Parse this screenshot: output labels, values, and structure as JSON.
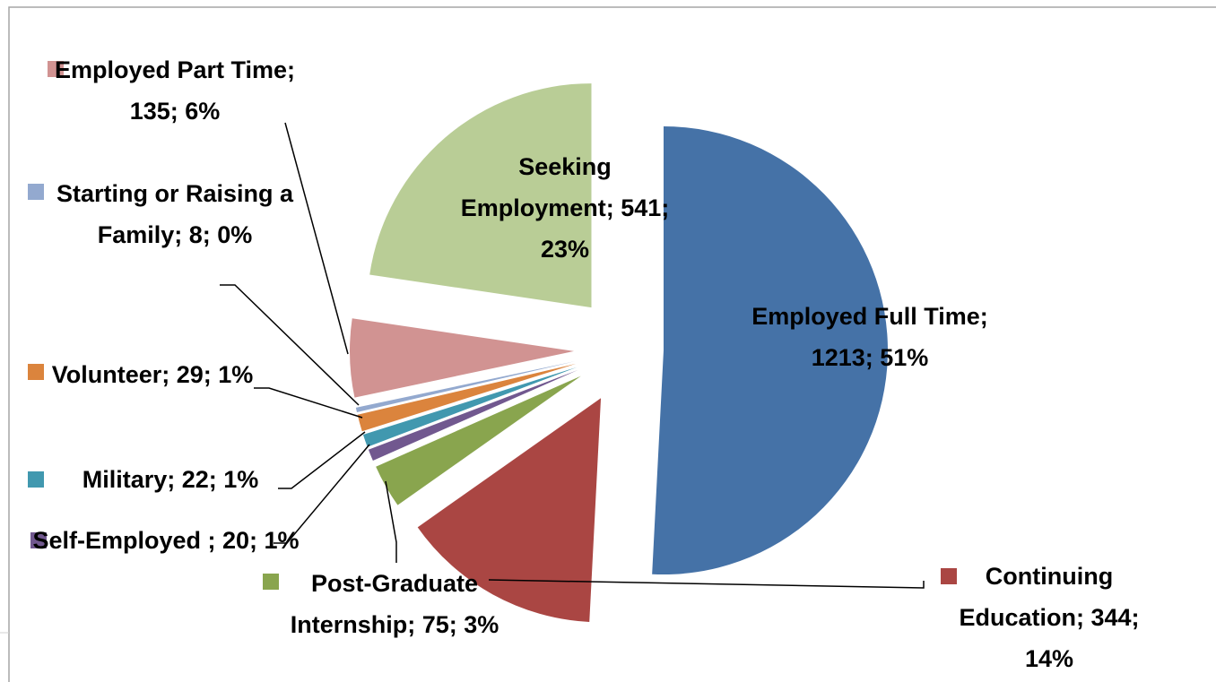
{
  "chart_data": {
    "type": "pie",
    "values": [
      1213,
      344,
      75,
      20,
      22,
      29,
      8,
      135,
      541
    ],
    "value_labels": [
      "Employed Full Time; 1213; 51%",
      "Continuing Education; 344; 14%",
      "Post-Graduate Internship; 75; 3%",
      "Self-Employed ; 20; 1%",
      "Military; 22; 1%",
      "Volunteer; 29; 1%",
      "Starting or Raising a Family; 8; 0%",
      "Employed Part Time; 135; 6%",
      "Seeking Employment; 541; 23%"
    ],
    "colors": [
      "#4572a7",
      "#aa4643",
      "#89a54e",
      "#71588f",
      "#4198af",
      "#db843d",
      "#93a9cf",
      "#d19392",
      "#b9cd96"
    ]
  }
}
